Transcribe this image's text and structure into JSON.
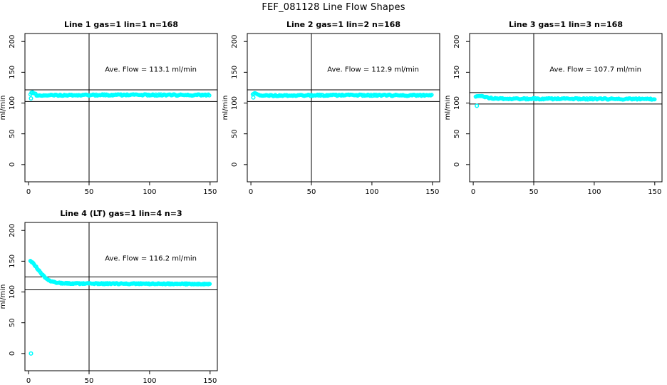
{
  "page": {
    "main_title": "FEF_081128  Line Flow Shapes"
  },
  "chart_data": {
    "type": "scatter",
    "grid": false,
    "legend": "none",
    "marker": {
      "shape": "open-circle",
      "color": "#00FFFF"
    },
    "line_color": "#000000",
    "axes": {
      "xticks": [
        0,
        50,
        100,
        150
      ],
      "yticks": [
        0,
        50,
        100,
        150,
        200
      ],
      "xlim": [
        -3,
        156
      ],
      "ylim": [
        -28,
        213
      ],
      "ylabel": "ml/min",
      "vline_x": 50
    },
    "panels": [
      {
        "title": "Line 1 gas=1 lin=1 n=168",
        "annotation": "Ave. Flow =  113.1  ml/min",
        "ave_flow": 113.1,
        "n": 168,
        "hline_top": 121.5,
        "hline_bottom": 102.5,
        "point_step": 0.85,
        "jitter": 1.1,
        "band_profile": [
          [
            1.5,
            115
          ],
          [
            3,
            117
          ],
          [
            5,
            116
          ],
          [
            7,
            112
          ],
          [
            10,
            111.5
          ],
          [
            15,
            112.2
          ],
          [
            25,
            112.8
          ],
          [
            40,
            113
          ],
          [
            80,
            113.2
          ],
          [
            120,
            113
          ],
          [
            150,
            113
          ]
        ],
        "outliers": [
          [
            2,
            107.5
          ],
          [
            2.6,
            116.5
          ]
        ]
      },
      {
        "title": "Line 2 gas=1 lin=2 n=168",
        "annotation": "Ave. Flow =  112.9  ml/min",
        "ave_flow": 112.9,
        "n": 168,
        "hline_top": 121.5,
        "hline_bottom": 102.5,
        "point_step": 0.85,
        "jitter": 1.1,
        "band_profile": [
          [
            1.5,
            114
          ],
          [
            3,
            115.5
          ],
          [
            5,
            114.5
          ],
          [
            7,
            112
          ],
          [
            12,
            111.8
          ],
          [
            20,
            112.3
          ],
          [
            40,
            112.5
          ],
          [
            80,
            112.8
          ],
          [
            120,
            112.5
          ],
          [
            150,
            112.5
          ]
        ],
        "outliers": [
          [
            2,
            109
          ]
        ]
      },
      {
        "title": "Line 3 gas=1 lin=3 n=168",
        "annotation": "Ave. Flow =  107.7  ml/min",
        "ave_flow": 107.7,
        "n": 168,
        "hline_top": 117,
        "hline_bottom": 98.5,
        "point_step": 0.85,
        "jitter": 1.1,
        "band_profile": [
          [
            2,
            110
          ],
          [
            4,
            111.5
          ],
          [
            6,
            111
          ],
          [
            10,
            109.5
          ],
          [
            15,
            108
          ],
          [
            25,
            107.2
          ],
          [
            40,
            106.9
          ],
          [
            80,
            106.8
          ],
          [
            120,
            106.6
          ],
          [
            150,
            106.5
          ]
        ],
        "outliers": [
          [
            3,
            95.5
          ]
        ]
      },
      {
        "title": "Line 4 (LT) gas=1 lin=4 n=3",
        "annotation": "Ave. Flow =  116.2  ml/min",
        "ave_flow": 116.2,
        "n": 3,
        "hline_top": 124.5,
        "hline_bottom": 103.5,
        "point_step": 0.6,
        "jitter": 0.9,
        "band_profile": [
          [
            1.5,
            150
          ],
          [
            3,
            148
          ],
          [
            5,
            144
          ],
          [
            7,
            139
          ],
          [
            9,
            134
          ],
          [
            11,
            129
          ],
          [
            13,
            125
          ],
          [
            15,
            121.5
          ],
          [
            18,
            118
          ],
          [
            21,
            116
          ],
          [
            25,
            114.8
          ],
          [
            30,
            114
          ],
          [
            40,
            113.7
          ],
          [
            60,
            113.5
          ],
          [
            90,
            113.4
          ],
          [
            120,
            113.2
          ],
          [
            150,
            112.8
          ]
        ],
        "outliers": [
          [
            2,
            0
          ]
        ]
      }
    ]
  }
}
